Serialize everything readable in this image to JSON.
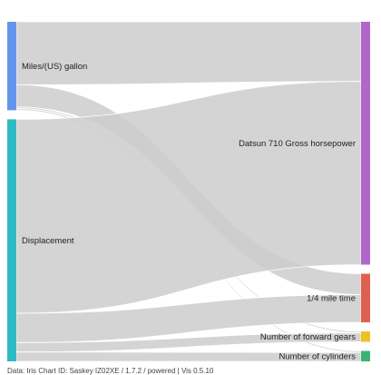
{
  "chart_data": {
    "type": "sankey",
    "title": "",
    "colors": {
      "link": "#cccccc",
      "Miles/(US) gallon": "#6495ed",
      "Displacement": "#2ebcc4",
      "Datsun 710 Gross horsepower": "#b266cc",
      "1/4 mile time": "#e06050",
      "Number of forward gears": "#f0c020",
      "Number of cylinders": "#3cb371"
    },
    "sources": [
      "Miles/(US) gallon",
      "Displacement"
    ],
    "targets": [
      "Datsun 710 Gross horsepower",
      "1/4 mile time",
      "Number of forward gears",
      "Number of cylinders"
    ],
    "flows": [
      {
        "source": "Miles/(US) gallon",
        "target": "Datsun 710 Gross horsepower",
        "value": 22.8
      },
      {
        "source": "Miles/(US) gallon",
        "target": "1/4 mile time",
        "value": 8.0
      },
      {
        "source": "Miles/(US) gallon",
        "target": "Number of forward gears",
        "value": 0.6
      },
      {
        "source": "Miles/(US) gallon",
        "target": "Number of cylinders",
        "value": 0.6
      },
      {
        "source": "Displacement",
        "target": "Datsun 710 Gross horsepower",
        "value": 70.2
      },
      {
        "source": "Displacement",
        "target": "1/4 mile time",
        "value": 10.6
      },
      {
        "source": "Displacement",
        "target": "Number of forward gears",
        "value": 3.4
      },
      {
        "source": "Displacement",
        "target": "Number of cylinders",
        "value": 3.4
      }
    ],
    "footer_text": "Data: Iris Chart ID: Saskey IZ02XE / 1.7.2 / powered | Vis 0.5.10"
  }
}
